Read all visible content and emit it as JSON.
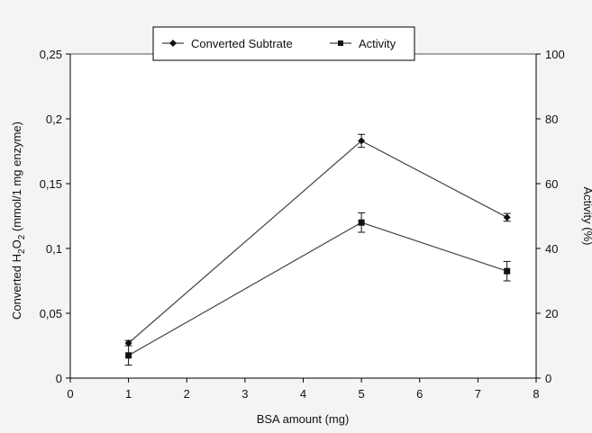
{
  "chart_data": {
    "type": "line",
    "xlabel": "BSA amount (mg)",
    "ylabel_left": {
      "prefix": "Converted H",
      "sub1": "2",
      "mid": "O",
      "sub2": "2",
      "suffix": " (mmol/1 mg  enzyme)"
    },
    "ylabel_right": "Activity (%)",
    "xlim": [
      0,
      8
    ],
    "xticks": [
      "0",
      "1",
      "2",
      "3",
      "4",
      "5",
      "6",
      "7",
      "8"
    ],
    "ylim_left": [
      0,
      0.25
    ],
    "yticks_left": [
      "0",
      "0,05",
      "0,1",
      "0,15",
      "0,2",
      "0,25"
    ],
    "ylim_right": [
      0,
      100
    ],
    "yticks_right": [
      "0",
      "20",
      "40",
      "60",
      "80",
      "100"
    ],
    "legend_position": "top-center",
    "series": [
      {
        "name": "Converted Subtrate",
        "axis": "left",
        "marker": "diamond",
        "x": [
          1,
          5,
          7.5
        ],
        "y": [
          0.027,
          0.183,
          0.124
        ],
        "err": [
          0.002,
          0.005,
          0.003
        ]
      },
      {
        "name": "Activity",
        "axis": "right",
        "marker": "square",
        "x": [
          1,
          5,
          7.5
        ],
        "y": [
          7,
          48,
          33
        ],
        "err": [
          3,
          3,
          3
        ]
      }
    ]
  }
}
